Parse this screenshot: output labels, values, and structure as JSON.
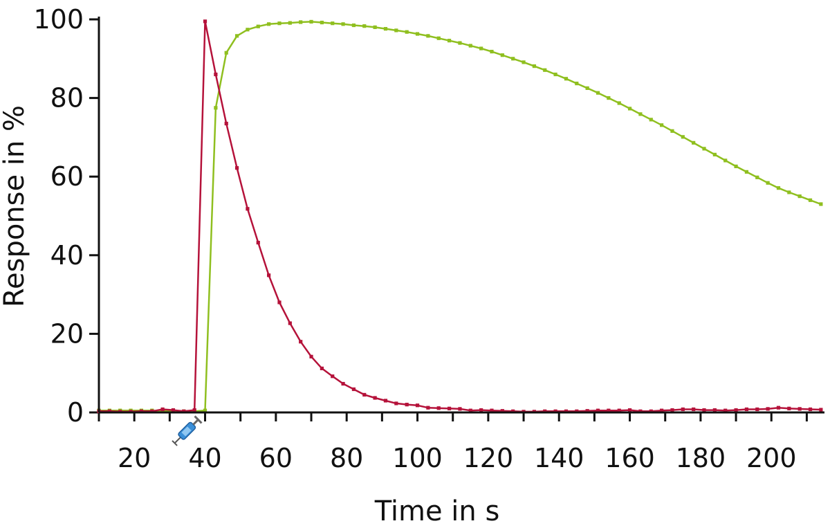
{
  "chart_data": {
    "type": "line",
    "title": "",
    "xlabel": "Time in s",
    "ylabel": "Response in %",
    "xlim": [
      10,
      215
    ],
    "ylim": [
      0,
      100
    ],
    "x_ticks": [
      20,
      40,
      60,
      80,
      100,
      120,
      140,
      160,
      180,
      200
    ],
    "y_ticks": [
      0,
      20,
      40,
      60,
      80,
      100
    ],
    "grid": false,
    "legend": "none",
    "injection_marker": {
      "x": 35,
      "icon": "syringe-icon"
    },
    "series": [
      {
        "color": "#8fbf1f",
        "x": [
          10,
          13,
          16,
          19,
          22,
          25,
          28,
          31,
          34,
          37,
          40,
          43,
          46,
          49,
          52,
          55,
          58,
          61,
          64,
          67,
          70,
          73,
          76,
          79,
          82,
          85,
          88,
          91,
          94,
          97,
          100,
          103,
          106,
          109,
          112,
          115,
          118,
          121,
          124,
          127,
          130,
          133,
          136,
          139,
          142,
          145,
          148,
          151,
          154,
          157,
          160,
          163,
          166,
          169,
          172,
          175,
          178,
          181,
          184,
          187,
          190,
          193,
          196,
          199,
          202,
          205,
          208,
          211,
          214
        ],
        "y": [
          0.5,
          0.5,
          0.5,
          0.5,
          0.5,
          0.5,
          0.3,
          0.3,
          0.3,
          0.3,
          0.5,
          77.5,
          91.5,
          95.8,
          97.4,
          98.2,
          98.8,
          99.0,
          99.1,
          99.3,
          99.4,
          99.2,
          99.0,
          98.8,
          98.5,
          98.3,
          98.0,
          97.6,
          97.2,
          96.8,
          96.3,
          95.8,
          95.2,
          94.6,
          94.0,
          93.3,
          92.6,
          91.8,
          90.9,
          90.0,
          89.1,
          88.1,
          87.1,
          86.0,
          84.9,
          83.7,
          82.5,
          81.3,
          80.0,
          78.7,
          77.3,
          75.9,
          74.5,
          73.1,
          71.6,
          70.1,
          68.6,
          67.1,
          65.6,
          64.1,
          62.6,
          61.2,
          59.8,
          58.4,
          57.1,
          56.0,
          55.0,
          54.0,
          53.0
        ]
      },
      {
        "color": "#b5123a",
        "x": [
          10,
          13,
          16,
          19,
          22,
          25,
          28,
          31,
          34,
          37,
          40,
          43,
          46,
          49,
          52,
          55,
          58,
          61,
          64,
          67,
          70,
          73,
          76,
          79,
          82,
          85,
          88,
          91,
          94,
          97,
          100,
          103,
          106,
          109,
          112,
          115,
          118,
          121,
          124,
          127,
          130,
          133,
          136,
          139,
          142,
          145,
          148,
          151,
          154,
          157,
          160,
          163,
          166,
          169,
          172,
          175,
          178,
          181,
          184,
          187,
          190,
          193,
          196,
          199,
          202,
          205,
          208,
          211,
          214
        ],
        "y": [
          0.3,
          0.3,
          0.2,
          0.2,
          0.3,
          0.3,
          0.8,
          0.6,
          0.3,
          0.6,
          99.5,
          86.0,
          73.5,
          62.2,
          51.8,
          43.2,
          34.9,
          28.0,
          22.7,
          18.0,
          14.2,
          11.2,
          9.2,
          7.3,
          5.9,
          4.5,
          3.7,
          3.0,
          2.3,
          2.0,
          1.8,
          1.2,
          1.1,
          1.0,
          0.9,
          0.5,
          0.6,
          0.5,
          0.4,
          0.3,
          0.2,
          0.2,
          0.3,
          0.3,
          0.3,
          0.3,
          0.4,
          0.5,
          0.5,
          0.5,
          0.6,
          0.3,
          0.3,
          0.5,
          0.6,
          0.8,
          0.8,
          0.6,
          0.6,
          0.5,
          0.6,
          0.8,
          0.8,
          0.9,
          1.2,
          1.0,
          0.9,
          0.8,
          0.7
        ]
      }
    ]
  }
}
